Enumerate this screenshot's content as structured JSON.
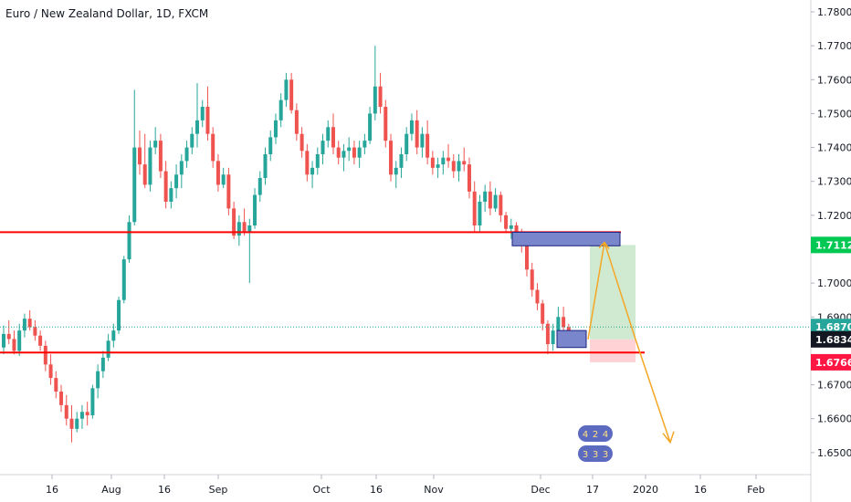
{
  "header": {
    "title": "Euro / New Zealand Dollar, 1D, FXCM"
  },
  "colors": {
    "up": "#26a69a",
    "down": "#ef5350",
    "level_line": "#ff0000",
    "zone_fill": "#7986cb",
    "zone_stroke": "#1a237e",
    "long_profit": "#c8e6c9",
    "long_loss": "#ffcdd2",
    "arrow": "#f5a623",
    "current_dotted": "#26a69a",
    "tag_green": "#00c853",
    "tag_current": "#26a69a",
    "tag_close": "#131722",
    "tag_stop": "#ff1744"
  },
  "chart_data": {
    "type": "candlestick",
    "symbol": "Euro / New Zealand Dollar",
    "interval": "1D",
    "source": "FXCM",
    "ylim": [
      1.6435,
      1.7835
    ],
    "y_ticks": [
      "1.78000",
      "1.77000",
      "1.76000",
      "1.75000",
      "1.74000",
      "1.73000",
      "1.72000",
      "1.71000",
      "1.70000",
      "1.69000",
      "1.67000",
      "1.66000",
      "1.65000"
    ],
    "x_ticks": [
      "16",
      "Aug",
      "16",
      "Sep",
      "Oct",
      "16",
      "Nov",
      "Dec",
      "17",
      "2020",
      "16",
      "Feb"
    ],
    "candles": [
      [
        1.681,
        1.6875,
        1.679,
        1.685
      ],
      [
        1.685,
        1.689,
        1.682,
        1.6835
      ],
      [
        1.6835,
        1.686,
        1.679,
        1.68
      ],
      [
        1.68,
        1.688,
        1.6785,
        1.686
      ],
      [
        1.686,
        1.691,
        1.684,
        1.6895
      ],
      [
        1.6895,
        1.692,
        1.686,
        1.687
      ],
      [
        1.687,
        1.689,
        1.683,
        1.6845
      ],
      [
        1.6845,
        1.686,
        1.68,
        1.6815
      ],
      [
        1.6815,
        1.683,
        1.674,
        1.676
      ],
      [
        1.676,
        1.679,
        1.67,
        1.672
      ],
      [
        1.672,
        1.674,
        1.666,
        1.668
      ],
      [
        1.668,
        1.67,
        1.662,
        1.664
      ],
      [
        1.664,
        1.667,
        1.658,
        1.66
      ],
      [
        1.66,
        1.664,
        1.653,
        1.657
      ],
      [
        1.657,
        1.662,
        1.656,
        1.66
      ],
      [
        1.66,
        1.664,
        1.657,
        1.662
      ],
      [
        1.662,
        1.665,
        1.658,
        1.661
      ],
      [
        1.661,
        1.67,
        1.66,
        1.669
      ],
      [
        1.669,
        1.676,
        1.666,
        1.674
      ],
      [
        1.674,
        1.68,
        1.672,
        1.678
      ],
      [
        1.678,
        1.685,
        1.677,
        1.683
      ],
      [
        1.683,
        1.688,
        1.681,
        1.686
      ],
      [
        1.686,
        1.696,
        1.685,
        1.695
      ],
      [
        1.695,
        1.708,
        1.694,
        1.707
      ],
      [
        1.707,
        1.72,
        1.706,
        1.718
      ],
      [
        1.718,
        1.757,
        1.717,
        1.74
      ],
      [
        1.74,
        1.745,
        1.732,
        1.735
      ],
      [
        1.735,
        1.744,
        1.728,
        1.729
      ],
      [
        1.729,
        1.742,
        1.727,
        1.74
      ],
      [
        1.74,
        1.746,
        1.738,
        1.742
      ],
      [
        1.742,
        1.744,
        1.731,
        1.733
      ],
      [
        1.733,
        1.736,
        1.722,
        1.724
      ],
      [
        1.724,
        1.73,
        1.722,
        1.728
      ],
      [
        1.728,
        1.735,
        1.725,
        1.732
      ],
      [
        1.732,
        1.738,
        1.728,
        1.736
      ],
      [
        1.736,
        1.742,
        1.734,
        1.74
      ],
      [
        1.74,
        1.746,
        1.738,
        1.744
      ],
      [
        1.744,
        1.759,
        1.74,
        1.748
      ],
      [
        1.748,
        1.754,
        1.746,
        1.752
      ],
      [
        1.752,
        1.758,
        1.742,
        1.744
      ],
      [
        1.744,
        1.746,
        1.734,
        1.736
      ],
      [
        1.736,
        1.738,
        1.727,
        1.729
      ],
      [
        1.729,
        1.734,
        1.728,
        1.732
      ],
      [
        1.732,
        1.734,
        1.72,
        1.722
      ],
      [
        1.722,
        1.724,
        1.713,
        1.714
      ],
      [
        1.714,
        1.72,
        1.711,
        1.718
      ],
      [
        1.718,
        1.722,
        1.714,
        1.715
      ],
      [
        1.715,
        1.719,
        1.7,
        1.717
      ],
      [
        1.717,
        1.728,
        1.716,
        1.726
      ],
      [
        1.726,
        1.733,
        1.724,
        1.731
      ],
      [
        1.731,
        1.74,
        1.729,
        1.738
      ],
      [
        1.738,
        1.745,
        1.736,
        1.743
      ],
      [
        1.743,
        1.75,
        1.741,
        1.748
      ],
      [
        1.748,
        1.756,
        1.746,
        1.754
      ],
      [
        1.754,
        1.762,
        1.752,
        1.76
      ],
      [
        1.76,
        1.762,
        1.75,
        1.751
      ],
      [
        1.751,
        1.753,
        1.742,
        1.744
      ],
      [
        1.744,
        1.746,
        1.737,
        1.739
      ],
      [
        1.739,
        1.741,
        1.73,
        1.732
      ],
      [
        1.732,
        1.736,
        1.728,
        1.734
      ],
      [
        1.734,
        1.74,
        1.732,
        1.738
      ],
      [
        1.738,
        1.744,
        1.735,
        1.742
      ],
      [
        1.742,
        1.748,
        1.74,
        1.746
      ],
      [
        1.746,
        1.75,
        1.738,
        1.74
      ],
      [
        1.74,
        1.742,
        1.735,
        1.737
      ],
      [
        1.737,
        1.741,
        1.733,
        1.739
      ],
      [
        1.739,
        1.743,
        1.736,
        1.74
      ],
      [
        1.74,
        1.742,
        1.735,
        1.737
      ],
      [
        1.737,
        1.742,
        1.734,
        1.74
      ],
      [
        1.74,
        1.744,
        1.738,
        1.742
      ],
      [
        1.742,
        1.752,
        1.741,
        1.75
      ],
      [
        1.75,
        1.77,
        1.748,
        1.758
      ],
      [
        1.758,
        1.762,
        1.75,
        1.752
      ],
      [
        1.752,
        1.754,
        1.74,
        1.742
      ],
      [
        1.742,
        1.744,
        1.73,
        1.732
      ],
      [
        1.732,
        1.736,
        1.728,
        1.734
      ],
      [
        1.734,
        1.74,
        1.731,
        1.738
      ],
      [
        1.738,
        1.746,
        1.736,
        1.744
      ],
      [
        1.744,
        1.75,
        1.742,
        1.748
      ],
      [
        1.748,
        1.751,
        1.738,
        1.74
      ],
      [
        1.74,
        1.746,
        1.737,
        1.744
      ],
      [
        1.744,
        1.748,
        1.735,
        1.737
      ],
      [
        1.737,
        1.739,
        1.732,
        1.734
      ],
      [
        1.734,
        1.737,
        1.731,
        1.735
      ],
      [
        1.735,
        1.739,
        1.732,
        1.737
      ],
      [
        1.737,
        1.741,
        1.734,
        1.736
      ],
      [
        1.736,
        1.738,
        1.731,
        1.733
      ],
      [
        1.733,
        1.738,
        1.73,
        1.736
      ],
      [
        1.736,
        1.74,
        1.733,
        1.735
      ],
      [
        1.735,
        1.737,
        1.725,
        1.727
      ],
      [
        1.727,
        1.73,
        1.715,
        1.717
      ],
      [
        1.717,
        1.726,
        1.715,
        1.724
      ],
      [
        1.724,
        1.729,
        1.721,
        1.727
      ],
      [
        1.727,
        1.73,
        1.72,
        1.722
      ],
      [
        1.722,
        1.728,
        1.721,
        1.726
      ],
      [
        1.726,
        1.727,
        1.718,
        1.72
      ],
      [
        1.72,
        1.721,
        1.715,
        1.716
      ],
      [
        1.716,
        1.719,
        1.713,
        1.717
      ],
      [
        1.717,
        1.718,
        1.712,
        1.714
      ],
      [
        1.714,
        1.716,
        1.709,
        1.711
      ],
      [
        1.711,
        1.712,
        1.702,
        1.704
      ],
      [
        1.704,
        1.706,
        1.696,
        1.698
      ],
      [
        1.698,
        1.7,
        1.692,
        1.694
      ],
      [
        1.694,
        1.695,
        1.686,
        1.688
      ],
      [
        1.688,
        1.689,
        1.679,
        1.682
      ],
      [
        1.682,
        1.688,
        1.68,
        1.686
      ],
      [
        1.686,
        1.693,
        1.683,
        1.69
      ],
      [
        1.69,
        1.693,
        1.685,
        1.687
      ],
      [
        1.687,
        1.688,
        1.683,
        1.685
      ]
    ],
    "horizontal_levels": [
      1.715,
      1.6795
    ],
    "current_price_line": 1.68705,
    "supply_zone": [
      1.711,
      1.715
    ],
    "demand_zone": [
      1.681,
      1.686
    ],
    "long_position": {
      "entry": 1.6834,
      "target": 1.71125,
      "stop": 1.67664
    },
    "price_tags": [
      {
        "label": "1.71125",
        "value": 1.71125,
        "color_key": "tag_green"
      },
      {
        "label": "1.68705",
        "value": 1.68705,
        "color_key": "tag_current"
      },
      {
        "label": "1.68340",
        "value": 1.6834,
        "color_key": "tag_close"
      },
      {
        "label": "1.67664",
        "value": 1.67664,
        "color_key": "tag_stop"
      }
    ],
    "arrow_path": [
      [
        1.6834,
        1.712
      ],
      [
        1.712,
        1.6834
      ],
      [
        1.6834,
        1.653
      ]
    ],
    "watermark_digits": [
      [
        "4",
        "2",
        "4"
      ],
      [
        "3",
        "3",
        "3"
      ]
    ]
  }
}
